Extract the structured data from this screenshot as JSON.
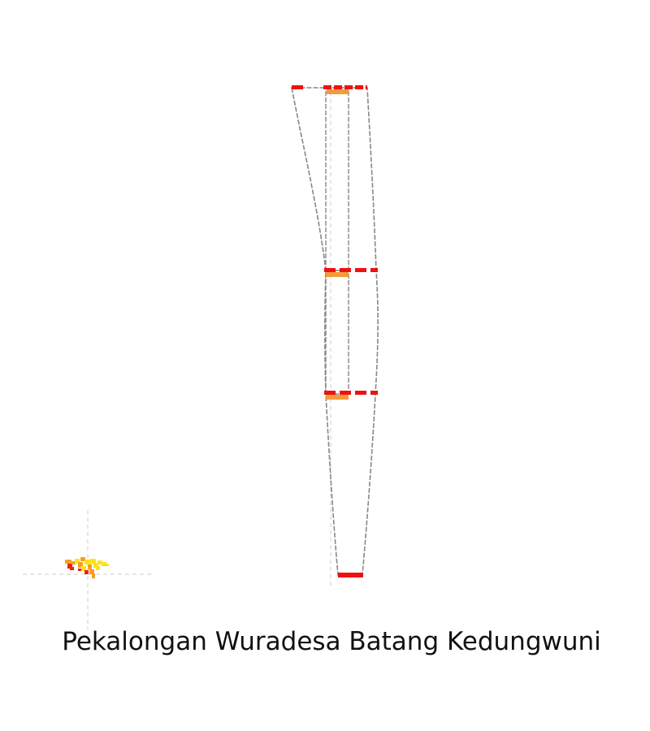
{
  "caption": "Pekalongan Wuradesa Batang Kedungwuni",
  "colors": {
    "outline": "#888888",
    "axis": "#cccccc",
    "primary_flow": "#ee1111",
    "secondary_flow": "#f59a3a",
    "minimap_red": "#ee2211",
    "minimap_orange": "#f5a020",
    "minimap_yellow": "#ffe21a"
  },
  "legend_swatches": []
}
